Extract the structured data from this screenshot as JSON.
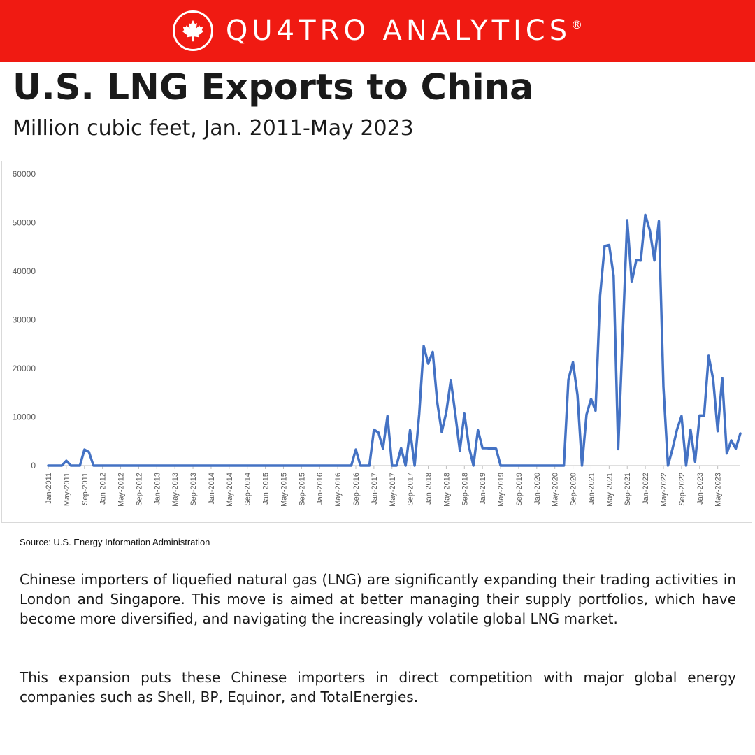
{
  "brand": {
    "name": "QU4TRO ANALYTICS",
    "registered_mark": "®",
    "icon": "maple-leaf-icon",
    "bar_color": "#f01a12"
  },
  "title": "U.S. LNG Exports to China",
  "subtitle": "Million cubic feet, Jan. 2011-May 2023",
  "source": "Source: U.S. Energy Information Administration",
  "paragraphs": [
    "Chinese importers of liquefied natural gas (LNG) are significantly expanding their trading activities in London and Singapore. This move is aimed at better managing their supply portfolios, which have become more diversified, and navigating the increasingly volatile global LNG market.",
    "This expansion puts these Chinese importers in direct competition with major global energy companies such as Shell, BP, Equinor, and TotalEnergies."
  ],
  "chart_data": {
    "type": "line",
    "title": "",
    "xlabel": "",
    "ylabel": "",
    "ylim": [
      0,
      60000
    ],
    "yticks": [
      0,
      10000,
      20000,
      30000,
      40000,
      50000,
      60000
    ],
    "grid": false,
    "legend": "none",
    "line_color": "#4472c4",
    "x_tick_labels": [
      "Jan-2011",
      "May-2011",
      "Sep-2011",
      "Jan-2012",
      "May-2012",
      "Sep-2012",
      "Jan-2013",
      "May-2013",
      "Sep-2013",
      "Jan-2014",
      "May-2014",
      "Sep-2014",
      "Jan-2015",
      "May-2015",
      "Sep-2015",
      "Jan-2016",
      "May-2016",
      "Sep-2016",
      "Jan-2017",
      "May-2017",
      "Sep-2017",
      "Jan-2018",
      "May-2018",
      "Sep-2018",
      "Jan-2019",
      "May-2019",
      "Sep-2019",
      "Jan-2020",
      "May-2020",
      "Sep-2020",
      "Jan-2021",
      "May-2021",
      "Sep-2021",
      "Jan-2022",
      "May-2022",
      "Sep-2022",
      "Jan-2023",
      "May-2023"
    ],
    "x_start": "Jan-2011",
    "x_end": "May-2023",
    "values": [
      0,
      0,
      0,
      0,
      1000,
      0,
      0,
      0,
      3300,
      2800,
      0,
      0,
      0,
      0,
      0,
      0,
      0,
      0,
      0,
      0,
      0,
      0,
      0,
      0,
      0,
      0,
      0,
      0,
      0,
      0,
      0,
      0,
      0,
      0,
      0,
      0,
      0,
      0,
      0,
      0,
      0,
      0,
      0,
      0,
      0,
      0,
      0,
      0,
      0,
      0,
      0,
      0,
      0,
      0,
      0,
      0,
      0,
      0,
      0,
      0,
      0,
      0,
      0,
      0,
      0,
      0,
      0,
      0,
      3300,
      0,
      0,
      0,
      7400,
      6800,
      3500,
      10200,
      0,
      0,
      3600,
      0,
      7300,
      0,
      10500,
      24600,
      21000,
      23400,
      13000,
      6900,
      11000,
      17600,
      10500,
      3100,
      10700,
      3900,
      0,
      7300,
      3600,
      3600,
      3500,
      3500,
      0,
      0,
      0,
      0,
      0,
      0,
      0,
      0,
      0,
      0,
      0,
      0,
      0,
      0,
      0,
      17700,
      21300,
      14500,
      0,
      10500,
      13700,
      11300,
      35000,
      45200,
      45400,
      39000,
      3400,
      27000,
      50500,
      37800,
      42300,
      42200,
      51600,
      48400,
      42200,
      50300,
      16200,
      0,
      3400,
      7400,
      10200,
      0,
      7400,
      800,
      10300,
      10300,
      22600,
      17700,
      7100,
      18000,
      2500,
      5200,
      3500,
      6600
    ]
  }
}
